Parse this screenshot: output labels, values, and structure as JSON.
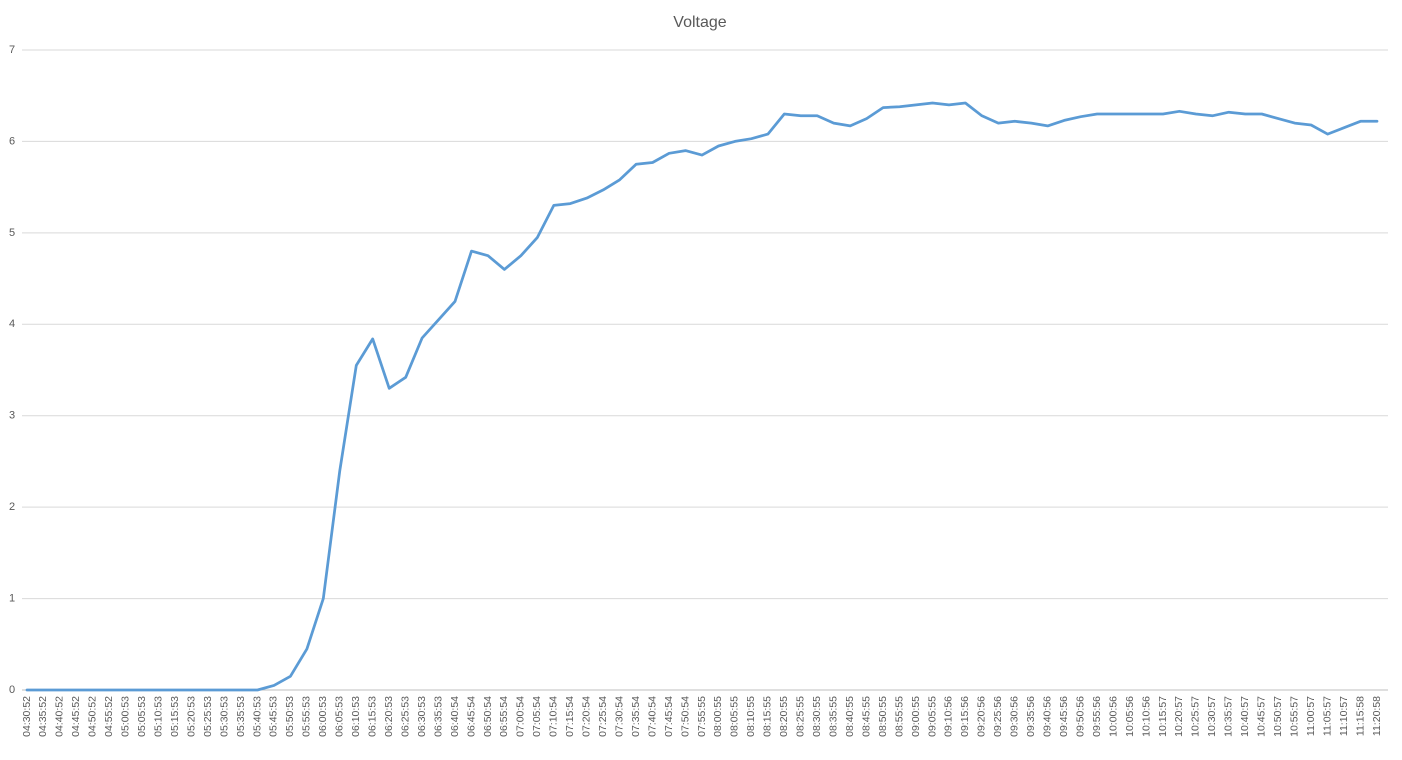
{
  "chart_data": {
    "type": "line",
    "title": "Voltage",
    "categories": [
      "04:30:52",
      "04:35:52",
      "04:40:52",
      "04:45:52",
      "04:50:52",
      "04:55:52",
      "05:00:53",
      "05:05:53",
      "05:10:53",
      "05:15:53",
      "05:20:53",
      "05:25:53",
      "05:30:53",
      "05:35:53",
      "05:40:53",
      "05:45:53",
      "05:50:53",
      "05:55:53",
      "06:00:53",
      "06:05:53",
      "06:10:53",
      "06:15:53",
      "06:20:53",
      "06:25:53",
      "06:30:53",
      "06:35:53",
      "06:40:54",
      "06:45:54",
      "06:50:54",
      "06:55:54",
      "07:00:54",
      "07:05:54",
      "07:10:54",
      "07:15:54",
      "07:20:54",
      "07:25:54",
      "07:30:54",
      "07:35:54",
      "07:40:54",
      "07:45:54",
      "07:50:54",
      "07:55:55",
      "08:00:55",
      "08:05:55",
      "08:10:55",
      "08:15:55",
      "08:20:55",
      "08:25:55",
      "08:30:55",
      "08:35:55",
      "08:40:55",
      "08:45:55",
      "08:50:55",
      "08:55:55",
      "09:00:55",
      "09:05:55",
      "09:10:56",
      "09:15:56",
      "09:20:56",
      "09:25:56",
      "09:30:56",
      "09:35:56",
      "09:40:56",
      "09:45:56",
      "09:50:56",
      "09:55:56",
      "10:00:56",
      "10:05:56",
      "10:10:56",
      "10:15:57",
      "10:20:57",
      "10:25:57",
      "10:30:57",
      "10:35:57",
      "10:40:57",
      "10:45:57",
      "10:50:57",
      "10:55:57",
      "11:00:57",
      "11:05:57",
      "11:10:57",
      "11:15:58",
      "11:20:58"
    ],
    "series": [
      {
        "name": "Voltage",
        "color": "#5b9bd5",
        "values": [
          0,
          0,
          0,
          0,
          0,
          0,
          0,
          0,
          0,
          0,
          0,
          0,
          0,
          0,
          0,
          0.05,
          0.15,
          0.45,
          1.0,
          2.4,
          3.55,
          3.84,
          3.3,
          3.42,
          3.85,
          4.05,
          4.25,
          4.8,
          4.75,
          4.6,
          4.75,
          4.95,
          5.3,
          5.32,
          5.38,
          5.47,
          5.58,
          5.75,
          5.77,
          5.87,
          5.9,
          5.85,
          5.95,
          6.0,
          6.03,
          6.08,
          6.3,
          6.28,
          6.28,
          6.2,
          6.17,
          6.25,
          6.37,
          6.38,
          6.4,
          6.42,
          6.4,
          6.42,
          6.28,
          6.2,
          6.22,
          6.2,
          6.17,
          6.23,
          6.27,
          6.3,
          6.3,
          6.3,
          6.3,
          6.3,
          6.33,
          6.3,
          6.28,
          6.32,
          6.3,
          6.3,
          6.25,
          6.2,
          6.18,
          6.08,
          6.15,
          6.22,
          6.22
        ]
      }
    ],
    "ylim": [
      0,
      7
    ],
    "yticks": [
      0,
      1,
      2,
      3,
      4,
      5,
      6,
      7
    ],
    "grid": true
  }
}
